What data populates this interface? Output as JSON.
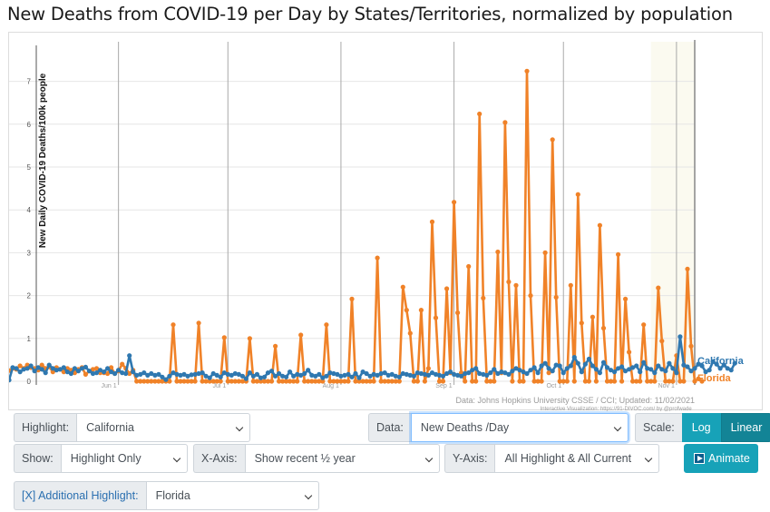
{
  "title": "New Deaths from COVID-19 per Day by States/Territories, normalized by population",
  "colors": {
    "california": "#2f78b0",
    "florida": "#f08228",
    "accent": "#17a2b8",
    "grid": "#e6e6e6"
  },
  "chart_data": {
    "type": "line",
    "ylabel": "New Daily COVID-19 Deaths/100k people",
    "ylim": [
      0,
      7.5
    ],
    "yticks": [
      "0",
      "1",
      "2",
      "3",
      "4",
      "5",
      "6",
      "7"
    ],
    "x_tick_labels": [
      "Jun 1",
      "Jul 1",
      "Aug 1",
      "Sep 1",
      "Oct 1",
      "Nov 1"
    ],
    "x_tick_days": [
      30,
      60,
      91,
      122,
      152,
      183
    ],
    "x_range_days": [
      0,
      188
    ],
    "x_origin_date": "2021-05-02",
    "source_text": "Data: Johns Hopkins University CSSE / CCI; Updated: 11/02/2021",
    "credit_text": "Interactive Visualization: https://91-DIVOC.com/ by @profwade_",
    "series": [
      {
        "name": "California",
        "color": "#2f78b0",
        "values": [
          0.03,
          0.32,
          0.3,
          0.22,
          0.28,
          0.3,
          0.36,
          0.24,
          0.32,
          0.28,
          0.2,
          0.38,
          0.3,
          0.26,
          0.28,
          0.32,
          0.22,
          0.18,
          0.3,
          0.24,
          0.3,
          0.33,
          0.24,
          0.18,
          0.2,
          0.26,
          0.22,
          0.3,
          0.22,
          0.18,
          0.26,
          0.2,
          0.18,
          0.6,
          0.22,
          0.14,
          0.16,
          0.2,
          0.14,
          0.18,
          0.14,
          0.16,
          0.1,
          0.04,
          0.12,
          0.2,
          0.16,
          0.14,
          0.16,
          0.12,
          0.15,
          0.16,
          0.18,
          0.2,
          0.12,
          0.08,
          0.18,
          0.14,
          0.1,
          0.2,
          0.16,
          0.14,
          0.18,
          0.16,
          0.12,
          0.06,
          0.2,
          0.12,
          0.16,
          0.08,
          0.1,
          0.2,
          0.24,
          0.12,
          0.18,
          0.12,
          0.1,
          0.22,
          0.12,
          0.16,
          0.14,
          0.18,
          0.26,
          0.14,
          0.12,
          0.16,
          0.08,
          0.12,
          0.2,
          0.18,
          0.16,
          0.12,
          0.14,
          0.16,
          0.1,
          0.18,
          0.08,
          0.22,
          0.18,
          0.12,
          0.16,
          0.14,
          0.18,
          0.2,
          0.14,
          0.16,
          0.12,
          0.1,
          0.18,
          0.16,
          0.14,
          0.12,
          0.2,
          0.18,
          0.16,
          0.14,
          0.2,
          0.16,
          0.14,
          0.12,
          0.18,
          0.22,
          0.16,
          0.14,
          0.12,
          0.18,
          0.2,
          0.26,
          0.3,
          0.18,
          0.16,
          0.14,
          0.2,
          0.28,
          0.18,
          0.22,
          0.2,
          0.16,
          0.24,
          0.3,
          0.26,
          0.22,
          0.18,
          0.26,
          0.32,
          0.2,
          0.36,
          0.42,
          0.3,
          0.24,
          0.38,
          0.36,
          0.2,
          0.3,
          0.36,
          0.56,
          0.42,
          0.22,
          0.4,
          0.52,
          0.36,
          0.28,
          0.2,
          0.44,
          0.32,
          0.26,
          0.22,
          0.3,
          0.34,
          0.24,
          0.28,
          0.32,
          0.36,
          0.22,
          0.44,
          0.3,
          0.28,
          0.2,
          0.36,
          0.28,
          0.24,
          0.42,
          0.3,
          0.2,
          1.04,
          0.38,
          0.34,
          0.24,
          0.3,
          0.4,
          0.36,
          0.22,
          0.26,
          0.46,
          0.4,
          0.3,
          0.38,
          0.3,
          0.26,
          0.42
        ]
      },
      {
        "name": "Florida",
        "color": "#f08228",
        "values": [
          0.25,
          0.3,
          0.28,
          0.36,
          0.3,
          0.38,
          0.32,
          0.3,
          0.26,
          0.38,
          0.3,
          0.34,
          0.22,
          0.32,
          0.28,
          0.22,
          0.3,
          0.26,
          0.2,
          0.28,
          0.32,
          0.16,
          0.24,
          0.28,
          0.3,
          0.2,
          0.2,
          0.18,
          0.32,
          0.18,
          0.24,
          0.4,
          0.3,
          0.18,
          0.26,
          0.0,
          0.0,
          0.0,
          0.0,
          0.0,
          0.0,
          0.0,
          0.0,
          0.0,
          0.0,
          1.32,
          0.0,
          0.0,
          0.0,
          0.0,
          0.0,
          0.0,
          1.36,
          0.0,
          0.0,
          0.0,
          0.0,
          0.0,
          0.0,
          1.02,
          0.0,
          0.0,
          0.0,
          0.0,
          0.0,
          0.0,
          1.0,
          0.0,
          0.0,
          0.0,
          0.0,
          0.0,
          0.0,
          0.82,
          0.0,
          0.0,
          0.0,
          0.0,
          0.0,
          0.0,
          1.08,
          0.0,
          0.0,
          0.0,
          0.0,
          0.0,
          0.0,
          1.32,
          0.0,
          0.0,
          0.0,
          0.0,
          0.0,
          0.0,
          1.92,
          0.0,
          0.0,
          0.0,
          0.0,
          0.0,
          0.0,
          2.88,
          0.0,
          0.0,
          0.0,
          0.0,
          0.0,
          0.0,
          2.2,
          1.66,
          1.12,
          0.0,
          0.0,
          1.66,
          0.0,
          0.3,
          3.72,
          1.48,
          0.0,
          0.0,
          2.16,
          0.2,
          4.18,
          1.6,
          0.2,
          0.0,
          2.68,
          0.0,
          0.0,
          6.24,
          1.94,
          0.0,
          0.0,
          0.0,
          3.02,
          0.2,
          6.04,
          2.32,
          0.0,
          2.24,
          0.0,
          0.0,
          7.24,
          2.0,
          0.0,
          0.0,
          0.0,
          3.0,
          0.2,
          5.64,
          1.96,
          0.0,
          0.0,
          0.0,
          2.24,
          0.0,
          4.36,
          1.36,
          0.0,
          0.0,
          1.5,
          0.0,
          3.64,
          1.24,
          0.0,
          0.0,
          0.0,
          2.96,
          0.0,
          1.92,
          0.68,
          0.0,
          0.0,
          0.0,
          1.32,
          0.0,
          0.0,
          0.0,
          2.18,
          0.94,
          0.0,
          0.0,
          0.0,
          0.6,
          0.0,
          0.0,
          2.62,
          0.82,
          0.0,
          0.06,
          0.0
        ]
      }
    ]
  },
  "controls": {
    "highlight": {
      "label": "Highlight:",
      "value": "California"
    },
    "data": {
      "label": "Data:",
      "value": "New Deaths /Day"
    },
    "scale": {
      "label": "Scale:",
      "log": "Log",
      "linear": "Linear"
    },
    "show": {
      "label": "Show:",
      "value": "Highlight Only"
    },
    "xaxis": {
      "label": "X-Axis:",
      "value": "Show recent ½ year"
    },
    "yaxis": {
      "label": "Y-Axis:",
      "value": "All Highlight & All Current"
    },
    "animate": {
      "label": "Animate"
    },
    "additional": {
      "label": "[X] Additional Highlight:",
      "value": "Florida"
    }
  }
}
